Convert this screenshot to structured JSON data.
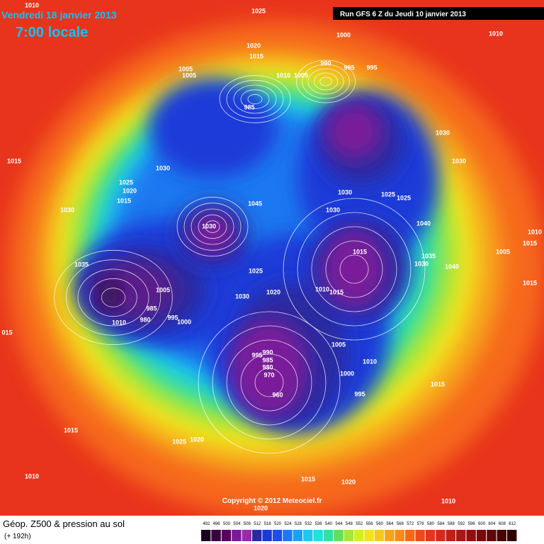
{
  "header": {
    "date": "Vendredi 18 janvier 2013",
    "time": "7:00 locale",
    "run": "Run GFS 6 Z du Jeudi 10 janvier 2013"
  },
  "map": {
    "isobar_labels": [
      "1010",
      "1025",
      "1000",
      "1010",
      "1020",
      "1015",
      "1005",
      "1005",
      "1010",
      "1005",
      "990",
      "995",
      "995",
      "985",
      "1030",
      "1030",
      "1015",
      "1025",
      "1020",
      "1015",
      "1030",
      "1030",
      "1030",
      "1045",
      "1030",
      "1030",
      "1025",
      "1025",
      "1040",
      "1035",
      "1015",
      "1035",
      "1030",
      "1040",
      "1005",
      "1015",
      "1025",
      "1020",
      "1015",
      "1010",
      "1030",
      "1005",
      "995",
      "1000",
      "980",
      "985",
      "1010",
      "015",
      "990",
      "985",
      "980",
      "970",
      "960",
      "995",
      "1005",
      "1010",
      "1000",
      "995",
      "1015",
      "1015",
      "1025",
      "1020",
      "1010",
      "1015",
      "1020",
      "1010",
      "1020",
      "1010",
      "1015"
    ]
  },
  "footer": {
    "copyright": "Copyright © 2012 Meteociel.fr",
    "title": "Géop. Z500 & pression au sol",
    "subtitle": "(+ 192h)",
    "scale": [
      492,
      496,
      500,
      504,
      508,
      512,
      516,
      520,
      524,
      528,
      532,
      536,
      540,
      544,
      548,
      552,
      556,
      560,
      564,
      568,
      572,
      576,
      580,
      584,
      588,
      592,
      596,
      600,
      604,
      608,
      612
    ]
  }
}
